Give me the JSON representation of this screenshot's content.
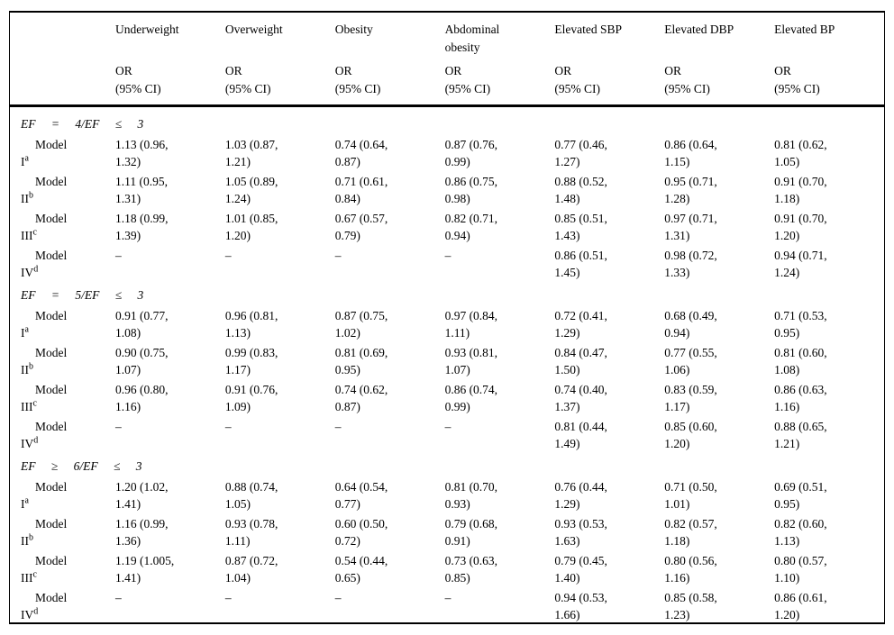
{
  "colors": {
    "text": "#000000",
    "background": "#ffffff",
    "rule": "#000000"
  },
  "table": {
    "subheader": "OR\n(95% CI)",
    "columns": [
      "Underweight",
      "Overweight",
      "Obesity",
      "Abdominal\nobesity",
      "Elevated SBP",
      "Elevated DBP",
      "Elevated BP"
    ],
    "sections": [
      {
        "title": "EF = 4/EF ≤ 3",
        "rows": [
          {
            "model": "Model",
            "numeral": "I",
            "sup": "a",
            "values": [
              "1.13 (0.96,\n1.32)",
              "1.03 (0.87,\n1.21)",
              "0.74 (0.64,\n0.87)",
              "0.87 (0.76,\n0.99)",
              "0.77 (0.46,\n1.27)",
              "0.86 (0.64,\n1.15)",
              "0.81 (0.62,\n1.05)"
            ]
          },
          {
            "model": "Model",
            "numeral": "II",
            "sup": "b",
            "values": [
              "1.11 (0.95,\n1.31)",
              "1.05 (0.89,\n1.24)",
              "0.71 (0.61,\n0.84)",
              "0.86 (0.75,\n0.98)",
              "0.88 (0.52,\n1.48)",
              "0.95 (0.71,\n1.28)",
              "0.91 (0.70,\n1.18)"
            ]
          },
          {
            "model": "Model",
            "numeral": "III",
            "sup": "c",
            "values": [
              "1.18 (0.99,\n1.39)",
              "1.01 (0.85,\n1.20)",
              "0.67 (0.57,\n0.79)",
              "0.82 (0.71,\n0.94)",
              "0.85 (0.51,\n1.43)",
              "0.97 (0.71,\n1.31)",
              "0.91 (0.70,\n1.20)"
            ]
          },
          {
            "model": "Model",
            "numeral": "IV",
            "sup": "d",
            "values": [
              "–",
              "–",
              "–",
              "–",
              "0.86 (0.51,\n1.45)",
              "0.98 (0.72,\n1.33)",
              "0.94 (0.71,\n1.24)"
            ]
          }
        ]
      },
      {
        "title": "EF = 5/EF ≤ 3",
        "rows": [
          {
            "model": "Model",
            "numeral": "I",
            "sup": "a",
            "values": [
              "0.91 (0.77,\n1.08)",
              "0.96 (0.81,\n1.13)",
              "0.87 (0.75,\n1.02)",
              "0.97 (0.84,\n1.11)",
              "0.72 (0.41,\n1.29)",
              "0.68 (0.49,\n0.94)",
              "0.71 (0.53,\n0.95)"
            ]
          },
          {
            "model": "Model",
            "numeral": "II",
            "sup": "b",
            "values": [
              "0.90 (0.75,\n1.07)",
              "0.99 (0.83,\n1.17)",
              "0.81 (0.69,\n0.95)",
              "0.93 (0.81,\n1.07)",
              "0.84 (0.47,\n1.50)",
              "0.77 (0.55,\n1.06)",
              "0.81 (0.60,\n1.08)"
            ]
          },
          {
            "model": "Model",
            "numeral": "III",
            "sup": "c",
            "values": [
              "0.96 (0.80,\n1.16)",
              "0.91 (0.76,\n1.09)",
              "0.74 (0.62,\n0.87)",
              "0.86 (0.74,\n0.99)",
              "0.74 (0.40,\n1.37)",
              "0.83 (0.59,\n1.17)",
              "0.86 (0.63,\n1.16)"
            ]
          },
          {
            "model": "Model",
            "numeral": "IV",
            "sup": "d",
            "values": [
              "–",
              "–",
              "–",
              "–",
              "0.81 (0.44,\n1.49)",
              "0.85 (0.60,\n1.20)",
              "0.88 (0.65,\n1.21)"
            ]
          }
        ]
      },
      {
        "title": "EF ≥ 6/EF ≤ 3",
        "rows": [
          {
            "model": "Model",
            "numeral": "I",
            "sup": "a",
            "values": [
              "1.20 (1.02,\n1.41)",
              "0.88 (0.74,\n1.05)",
              "0.64 (0.54,\n0.77)",
              "0.81 (0.70,\n0.93)",
              "0.76 (0.44,\n1.29)",
              "0.71 (0.50,\n1.01)",
              "0.69 (0.51,\n0.95)"
            ]
          },
          {
            "model": "Model",
            "numeral": "II",
            "sup": "b",
            "values": [
              "1.16 (0.99,\n1.36)",
              "0.93 (0.78,\n1.11)",
              "0.60 (0.50,\n0.72)",
              "0.79 (0.68,\n0.91)",
              "0.93 (0.53,\n1.63)",
              "0.82 (0.57,\n1.18)",
              "0.82 (0.60,\n1.13)"
            ]
          },
          {
            "model": "Model",
            "numeral": "III",
            "sup": "c",
            "values": [
              "1.19 (1.005,\n1.41)",
              "0.87 (0.72,\n1.04)",
              "0.54 (0.44,\n0.65)",
              "0.73 (0.63,\n0.85)",
              "0.79 (0.45,\n1.40)",
              "0.80 (0.56,\n1.16)",
              "0.80 (0.57,\n1.10)"
            ]
          },
          {
            "model": "Model",
            "numeral": "IV",
            "sup": "d",
            "values": [
              "–",
              "–",
              "–",
              "–",
              "0.94 (0.53,\n1.66)",
              "0.85 (0.58,\n1.23)",
              "0.86 (0.61,\n1.20)"
            ]
          }
        ]
      }
    ]
  }
}
